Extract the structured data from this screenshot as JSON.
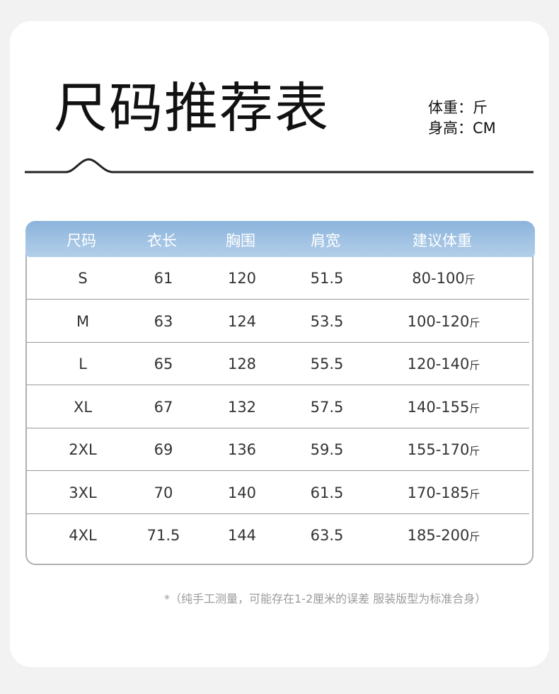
{
  "title": "尺码推荐表",
  "units": {
    "weight": "体重：斤",
    "height": "身高：CM"
  },
  "table": {
    "headers": [
      "尺码",
      "衣长",
      "胸围",
      "肩宽",
      "建议体重"
    ],
    "weight_unit": "斤",
    "rows": [
      [
        "S",
        "61",
        "120",
        "51.5",
        "80-100"
      ],
      [
        "M",
        "63",
        "124",
        "53.5",
        "100-120"
      ],
      [
        "L",
        "65",
        "128",
        "55.5",
        "120-140"
      ],
      [
        "XL",
        "67",
        "132",
        "57.5",
        "140-155"
      ],
      [
        "2XL",
        "69",
        "136",
        "59.5",
        "155-170"
      ],
      [
        "3XL",
        "70",
        "140",
        "61.5",
        "170-185"
      ],
      [
        "4XL",
        "71.5",
        "144",
        "63.5",
        "185-200"
      ]
    ]
  },
  "note": "*（纯手工测量，可能存在1-2厘米的误差  服装版型为标准合身）",
  "colors": {
    "header_gradient_top": "#8bb3dc",
    "header_gradient_bottom": "#b3cfe9"
  }
}
